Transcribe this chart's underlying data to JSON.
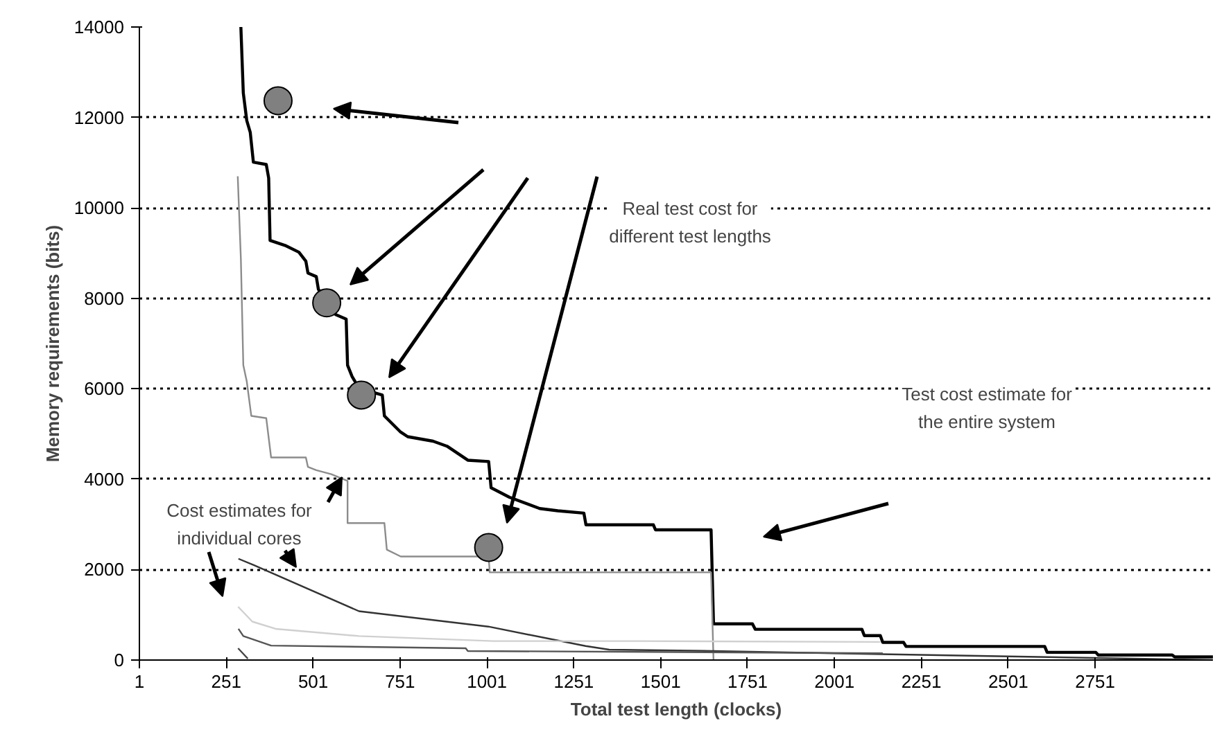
{
  "chart_data": {
    "type": "line",
    "xlabel": "Total test length (clocks)",
    "ylabel": "Memory requirements (bits)",
    "xlim": [
      1,
      3090
    ],
    "xticks": [
      1,
      251,
      501,
      751,
      1001,
      1251,
      1501,
      1751,
      2001,
      2251,
      2501,
      2751
    ],
    "ylim": [
      0,
      14000
    ],
    "yticks": [
      0,
      2000,
      4000,
      6000,
      8000,
      10000,
      12000,
      14000
    ],
    "grid": "y",
    "marker": "none",
    "line_style": "solid",
    "annotations": [
      "Real test cost for different test lengths",
      "Cost estimates for individual cores",
      "Test cost estimate for the entire system"
    ],
    "series": [
      {
        "color": "#000000",
        "x": [
          293,
          300,
          310,
          320,
          329,
          366,
          373,
          377,
          420,
          460,
          480,
          486,
          510,
          516,
          566,
          596,
          600,
          613,
          633,
          700,
          706,
          753,
          773,
          846,
          886,
          946,
          1006,
          1013,
          1066,
          1153,
          1205,
          1280,
          1286,
          1480,
          1486,
          1646,
          1653,
          1765,
          1773,
          2080,
          2087,
          2133,
          2140,
          2200,
          2207,
          2606,
          2613,
          2753,
          2760,
          2973,
          2980,
          3090
        ],
        "values": [
          14000,
          12540,
          11930,
          11670,
          11010,
          10960,
          10660,
          9280,
          9170,
          9020,
          8820,
          8560,
          8480,
          8200,
          7640,
          7540,
          6520,
          6270,
          6010,
          5860,
          5400,
          5040,
          4940,
          4840,
          4730,
          4420,
          4390,
          3810,
          3600,
          3350,
          3300,
          3250,
          2990,
          2990,
          2880,
          2880,
          800,
          800,
          680,
          680,
          540,
          540,
          390,
          390,
          300,
          300,
          170,
          170,
          110,
          110,
          70,
          70
        ]
      },
      {
        "color": "#8c8c8c",
        "x": [
          284,
          293,
          300,
          310,
          323,
          366,
          380,
          480,
          486,
          510,
          553,
          600,
          600,
          706,
          713,
          753,
          1006,
          1009,
          1646,
          1653
        ],
        "values": [
          10700,
          8870,
          6520,
          6160,
          5400,
          5350,
          4480,
          4480,
          4270,
          4200,
          4110,
          3960,
          3030,
          3030,
          2440,
          2290,
          2290,
          1940,
          1940,
          0
        ]
      },
      {
        "color": "#333333",
        "x": [
          286,
          330,
          633,
          1005,
          1285,
          1353,
          1653,
          2133,
          3090
        ],
        "values": [
          2240,
          2100,
          1080,
          740,
          310,
          230,
          200,
          130,
          0
        ]
      },
      {
        "color": "#d0d0d0",
        "x": [
          285,
          326,
          393,
          633,
          1020,
          1433,
          2133
        ],
        "values": [
          1180,
          850,
          690,
          530,
          420,
          420,
          400
        ]
      },
      {
        "color": "#555555",
        "x": [
          286,
          300,
          380,
          940,
          946,
          2140
        ],
        "values": [
          690,
          530,
          320,
          260,
          200,
          150
        ]
      },
      {
        "color": "#444444",
        "x": [
          285,
          313
        ],
        "values": [
          260,
          30
        ]
      },
      {
        "type": "scatter",
        "marker": "circle",
        "color": "#808080",
        "x": [
          400,
          540,
          640,
          1006
        ],
        "values": [
          12370,
          7900,
          5860,
          2490
        ]
      }
    ]
  }
}
